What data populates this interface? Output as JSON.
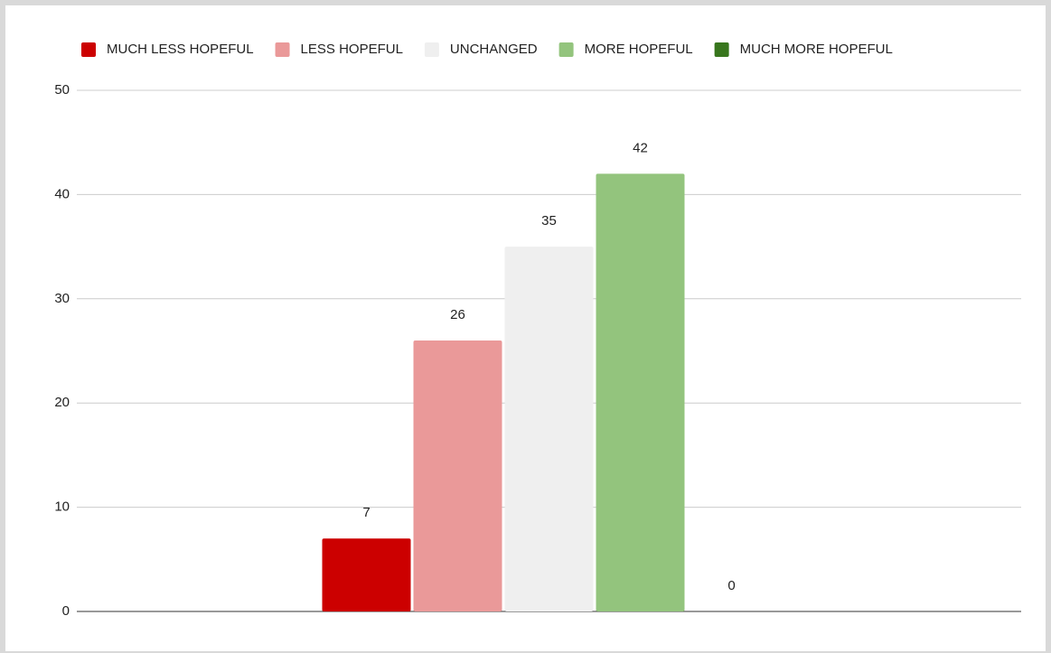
{
  "chart_data": {
    "type": "bar",
    "categories": [
      null
    ],
    "series": [
      {
        "name": "MUCH LESS HOPEFUL",
        "color": "#cc0000",
        "values": [
          7
        ]
      },
      {
        "name": "LESS HOPEFUL",
        "color": "#ea9999",
        "values": [
          26
        ]
      },
      {
        "name": "UNCHANGED",
        "color": "#efefef",
        "values": [
          35
        ]
      },
      {
        "name": "MORE HOPEFUL",
        "color": "#93c47d",
        "values": [
          42
        ]
      },
      {
        "name": "MUCH MORE HOPEFUL",
        "color": "#38761d",
        "values": [
          0
        ]
      }
    ],
    "ylim": [
      0,
      50
    ],
    "yticks": [
      0,
      10,
      20,
      30,
      40,
      50
    ],
    "grid": true,
    "legend": "top"
  }
}
